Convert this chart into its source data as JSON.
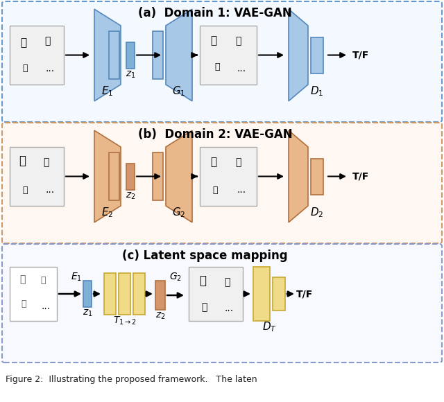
{
  "panel_a_title": "(a)  Domain 1: VAE-GAN",
  "panel_b_title": "(b)  Domain 2: VAE-GAN",
  "panel_c_title": "(c) Latent space mapping",
  "caption": "Figure 2:  Illustrating the proposed framework.   The laten",
  "color_blue_light": "#A8C8E8",
  "color_blue_mid": "#7EB0D8",
  "color_blue_dark": "#5588BB",
  "color_orange_light": "#E8B88A",
  "color_orange_mid": "#D4956A",
  "color_orange_dark": "#B07040",
  "color_yellow_light": "#F0DC88",
  "color_yellow_dark": "#C8A830",
  "color_panel_a_border": "#6699CC",
  "color_panel_a_fill": "#F4F8FF",
  "color_panel_b_border": "#CC9966",
  "color_panel_b_fill": "#FFF8F2",
  "color_panel_c_border": "#8899CC",
  "color_panel_c_fill": "#F8F8FF",
  "bg_color": "#FFFFFF"
}
